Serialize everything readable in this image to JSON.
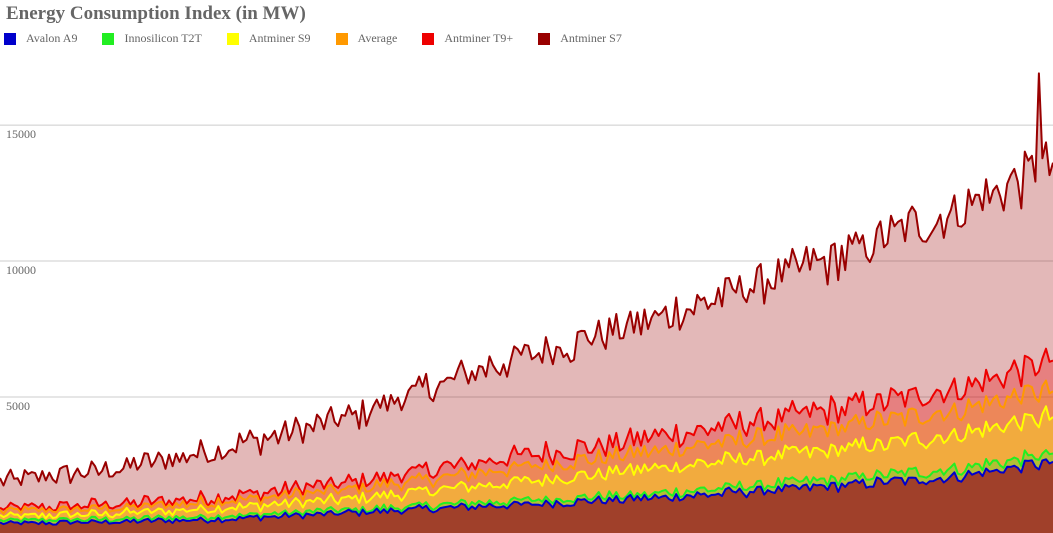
{
  "chart_data": {
    "type": "area",
    "title": "Energy Consumption Index (in MW)",
    "xlabel": "",
    "ylabel": "",
    "ylim": [
      0,
      19600
    ],
    "y_ticks": [
      5000,
      10000,
      15000
    ],
    "y_tick_labels": [
      "5000",
      "10000",
      "15000"
    ],
    "grid": true,
    "legend_position": "top-left",
    "n_points": 300,
    "series": [
      {
        "name": "Avalon A9",
        "color": "#0000cc",
        "anchors": [
          [
            0,
            350
          ],
          [
            30,
            400
          ],
          [
            60,
            500
          ],
          [
            100,
            750
          ],
          [
            140,
            1000
          ],
          [
            180,
            1250
          ],
          [
            210,
            1500
          ],
          [
            240,
            1750
          ],
          [
            270,
            2050
          ],
          [
            299,
            2600
          ]
        ],
        "noise": 150
      },
      {
        "name": "Innosilicon T2T",
        "color": "#22ee22",
        "anchors": [
          [
            0,
            450
          ],
          [
            30,
            500
          ],
          [
            60,
            600
          ],
          [
            100,
            850
          ],
          [
            140,
            1150
          ],
          [
            180,
            1400
          ],
          [
            210,
            1700
          ],
          [
            240,
            2000
          ],
          [
            270,
            2350
          ],
          [
            299,
            2900
          ]
        ],
        "noise": 170
      },
      {
        "name": "Antminer S9",
        "color": "#ffff00",
        "anchors": [
          [
            0,
            600
          ],
          [
            30,
            700
          ],
          [
            60,
            900
          ],
          [
            100,
            1250
          ],
          [
            140,
            1800
          ],
          [
            180,
            2300
          ],
          [
            210,
            2700
          ],
          [
            240,
            3100
          ],
          [
            270,
            3600
          ],
          [
            299,
            4300
          ]
        ],
        "noise": 250
      },
      {
        "name": "Average",
        "color": "#ff9900",
        "anchors": [
          [
            0,
            800
          ],
          [
            30,
            900
          ],
          [
            60,
            1150
          ],
          [
            100,
            1600
          ],
          [
            140,
            2300
          ],
          [
            180,
            2900
          ],
          [
            210,
            3400
          ],
          [
            240,
            3900
          ],
          [
            270,
            4500
          ],
          [
            299,
            5300
          ]
        ],
        "noise": 300
      },
      {
        "name": "Antminer T9+",
        "color": "#ee0000",
        "anchors": [
          [
            0,
            900
          ],
          [
            30,
            1050
          ],
          [
            60,
            1300
          ],
          [
            100,
            1850
          ],
          [
            140,
            2700
          ],
          [
            180,
            3400
          ],
          [
            210,
            4000
          ],
          [
            240,
            4600
          ],
          [
            270,
            5300
          ],
          [
            299,
            6300
          ]
        ],
        "noise": 380
      },
      {
        "name": "Antminer S7",
        "color": "#990000",
        "anchors": [
          [
            0,
            1900
          ],
          [
            30,
            2300
          ],
          [
            60,
            3000
          ],
          [
            100,
            4300
          ],
          [
            140,
            6200
          ],
          [
            180,
            7600
          ],
          [
            210,
            9000
          ],
          [
            240,
            10200
          ],
          [
            270,
            11800
          ],
          [
            299,
            13600
          ]
        ],
        "noise": 650
      }
    ]
  }
}
